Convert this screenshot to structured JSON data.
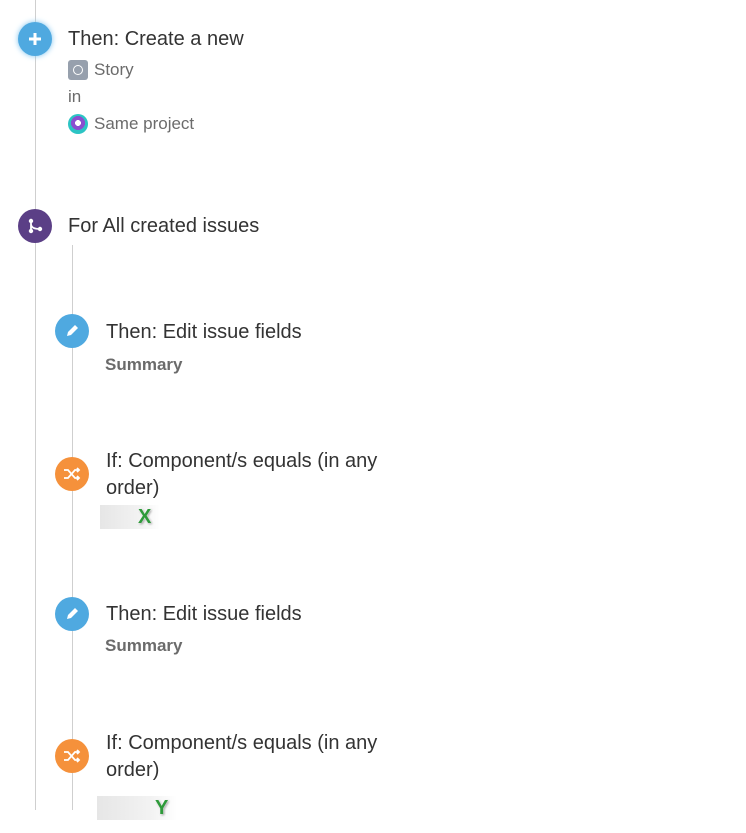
{
  "colors": {
    "create": "#4fa9e0",
    "branch": "#5b3f86",
    "edit": "#4fa9e0",
    "condition": "#f5913b"
  },
  "create": {
    "title": "Then: Create a new",
    "issue_type": "Story",
    "in": "in",
    "project": "Same project",
    "icon": "plus-icon"
  },
  "branch": {
    "title": "For All created issues",
    "icon": "branch-icon"
  },
  "steps": [
    {
      "title": "Then: Edit issue fields",
      "field": "Summary",
      "icon": "pencil-icon"
    },
    {
      "title_l1": "If: Component/s equals (in any",
      "title_l2": "order)",
      "value": "X",
      "icon": "shuffle-icon"
    },
    {
      "title": "Then: Edit issue fields",
      "field": "Summary",
      "icon": "pencil-icon"
    },
    {
      "title_l1": "If: Component/s equals (in any",
      "title_l2": "order)",
      "value": "Y",
      "icon": "shuffle-icon"
    }
  ]
}
